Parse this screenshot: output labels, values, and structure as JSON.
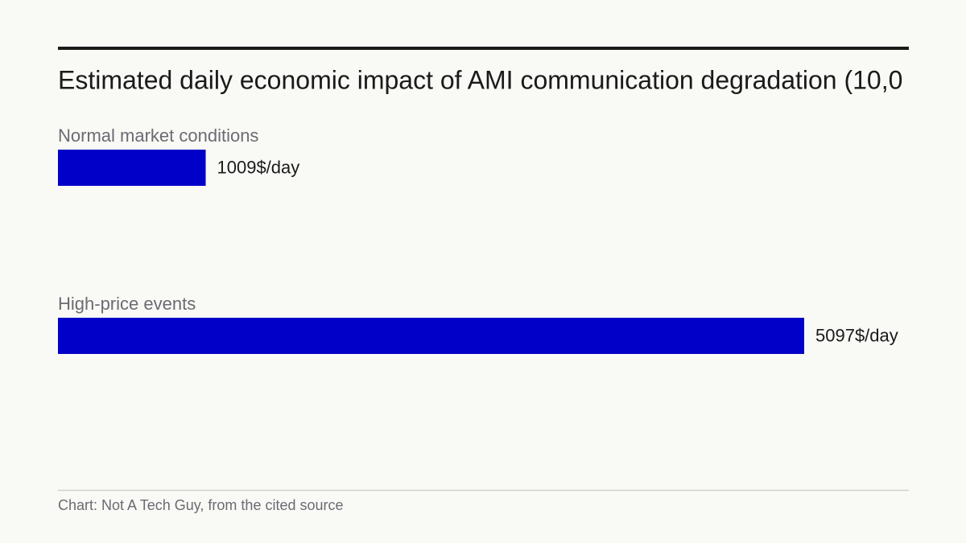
{
  "chart_data": {
    "type": "bar",
    "orientation": "horizontal",
    "title": "Estimated daily economic impact of AMI communication degradation (10,0",
    "categories": [
      "Normal market conditions",
      "High-price events"
    ],
    "values": [
      1009,
      5097
    ],
    "value_labels": [
      "1009$/day",
      "5097$/day"
    ],
    "color": "#0000c8",
    "source": "Chart: Not A Tech Guy, from the cited source"
  }
}
